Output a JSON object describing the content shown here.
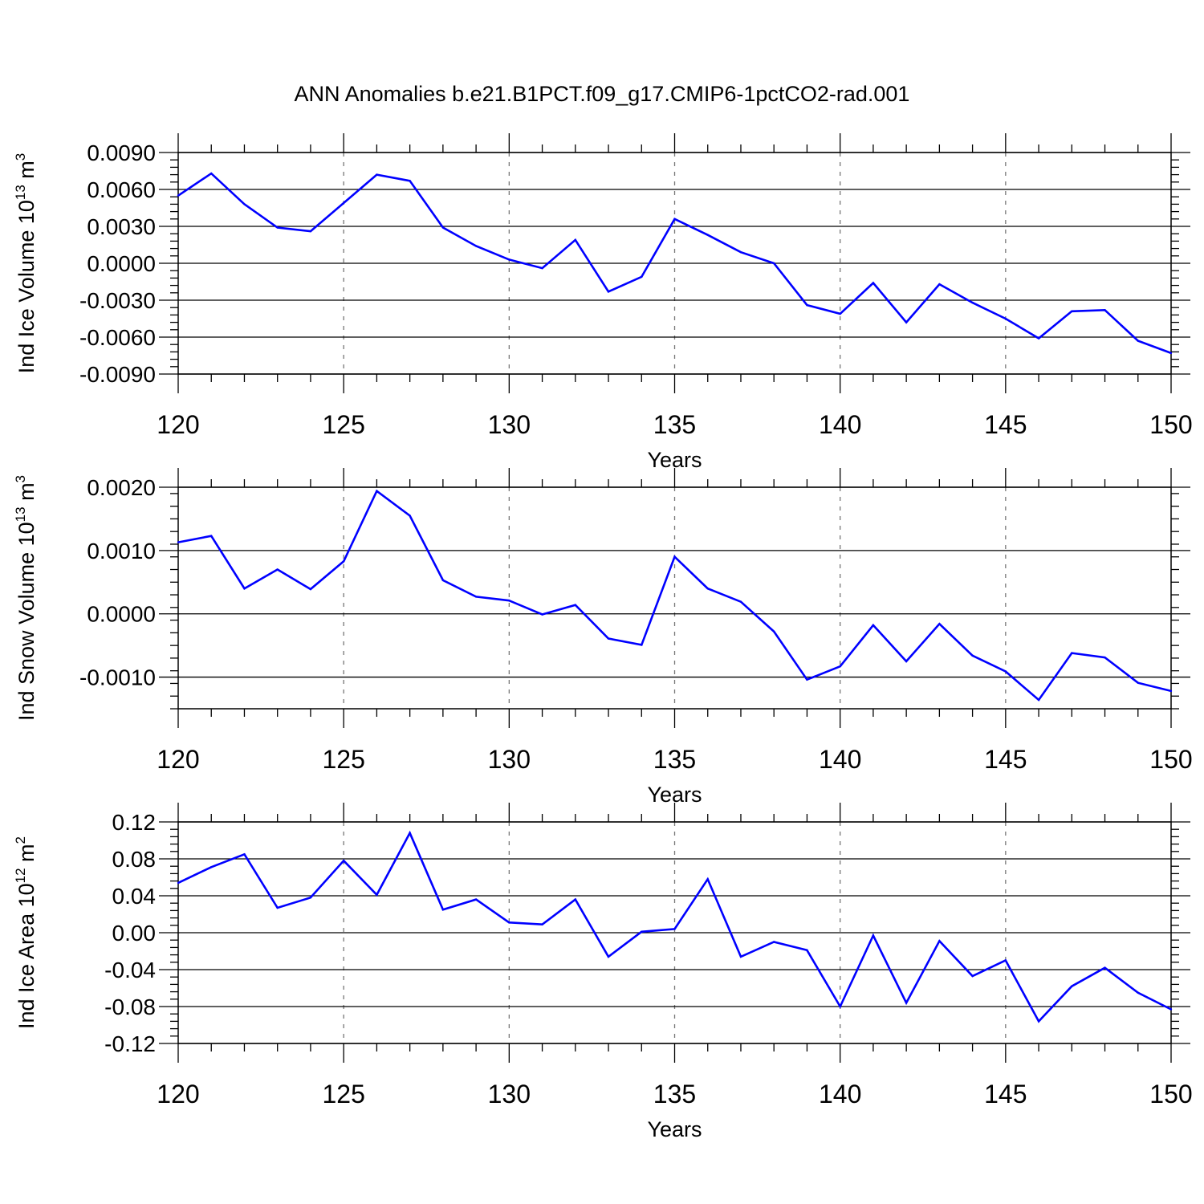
{
  "title": "ANN Anomalies b.e21.B1PCT.f09_g17.CMIP6-1pctCO2-rad.001",
  "colors": {
    "line": "#0000ff",
    "axis": "#000000",
    "grid": "#777777"
  },
  "chart_data": [
    {
      "type": "line",
      "ylabel": {
        "text": "Ind Ice Volume 10",
        "exponent": "13",
        "unit": " m",
        "unit_exponent": "3"
      },
      "xlabel": "Years",
      "xlim": [
        120,
        150
      ],
      "ylim": [
        -0.009,
        0.009
      ],
      "xticks": [
        "120",
        "125",
        "130",
        "135",
        "140",
        "145",
        "150"
      ],
      "yticks": [
        {
          "value": 0.009,
          "label": "0.0090"
        },
        {
          "value": 0.006,
          "label": "0.0060"
        },
        {
          "value": 0.003,
          "label": "0.0030"
        },
        {
          "value": 0.0,
          "label": "0.0000"
        },
        {
          "value": -0.003,
          "label": "-0.0030"
        },
        {
          "value": -0.006,
          "label": "-0.0060"
        },
        {
          "value": -0.009,
          "label": "-0.0090"
        }
      ],
      "grid": "vertical dashed",
      "x": [
        120,
        121,
        122,
        123,
        124,
        125,
        126,
        127,
        128,
        129,
        130,
        131,
        132,
        133,
        134,
        135,
        136,
        137,
        138,
        139,
        140,
        141,
        142,
        143,
        144,
        145,
        146,
        147,
        148,
        149,
        150
      ],
      "y": [
        0.0055,
        0.0073,
        0.0048,
        0.0029,
        0.0026,
        0.0049,
        0.0072,
        0.0067,
        0.0029,
        0.0014,
        0.0003,
        -0.0004,
        0.0019,
        -0.0023,
        -0.0011,
        0.0036,
        0.0023,
        0.0009,
        0.0,
        -0.0034,
        -0.0041,
        -0.0016,
        -0.0048,
        -0.0017,
        -0.0032,
        -0.0045,
        -0.0061,
        -0.0039,
        -0.0038,
        -0.0063,
        -0.0073
      ]
    },
    {
      "type": "line",
      "ylabel": {
        "text": "Ind Snow Volume 10",
        "exponent": "13",
        "unit": " m",
        "unit_exponent": "3"
      },
      "xlabel": "Years",
      "xlim": [
        120,
        150
      ],
      "ylim": [
        -0.0015,
        0.002
      ],
      "xticks": [
        "120",
        "125",
        "130",
        "135",
        "140",
        "145",
        "150"
      ],
      "yticks": [
        {
          "value": 0.002,
          "label": "0.0020"
        },
        {
          "value": 0.001,
          "label": "0.0010"
        },
        {
          "value": 0.0,
          "label": "0.0000"
        },
        {
          "value": -0.001,
          "label": "-0.0010"
        }
      ],
      "grid": "vertical dashed",
      "x": [
        120,
        121,
        122,
        123,
        124,
        125,
        126,
        127,
        128,
        129,
        130,
        131,
        132,
        133,
        134,
        135,
        136,
        137,
        138,
        139,
        140,
        141,
        142,
        143,
        144,
        145,
        146,
        147,
        148,
        149,
        150
      ],
      "y": [
        0.00113,
        0.00123,
        0.0004,
        0.0007,
        0.00039,
        0.00083,
        0.00194,
        0.00155,
        0.00053,
        0.00027,
        0.00021,
        -1e-05,
        0.00014,
        -0.00039,
        -0.00049,
        0.0009,
        0.0004,
        0.00019,
        -0.00028,
        -0.00104,
        -0.00083,
        -0.00018,
        -0.00075,
        -0.00016,
        -0.00066,
        -0.00091,
        -0.00136,
        -0.00062,
        -0.00069,
        -0.00109,
        -0.00122
      ]
    },
    {
      "type": "line",
      "ylabel": {
        "text": "Ind Ice Area 10",
        "exponent": "12",
        "unit": " m",
        "unit_exponent": "2"
      },
      "xlabel": "Years",
      "xlim": [
        120,
        150
      ],
      "ylim": [
        -0.12,
        0.12
      ],
      "xticks": [
        "120",
        "125",
        "130",
        "135",
        "140",
        "145",
        "150"
      ],
      "yticks": [
        {
          "value": 0.12,
          "label": "0.12"
        },
        {
          "value": 0.08,
          "label": "0.08"
        },
        {
          "value": 0.04,
          "label": "0.04"
        },
        {
          "value": 0.0,
          "label": "0.00"
        },
        {
          "value": -0.04,
          "label": "-0.04"
        },
        {
          "value": -0.08,
          "label": "-0.08"
        },
        {
          "value": -0.12,
          "label": "-0.12"
        }
      ],
      "grid": "vertical dashed",
      "x": [
        120,
        121,
        122,
        123,
        124,
        125,
        126,
        127,
        128,
        129,
        130,
        131,
        132,
        133,
        134,
        135,
        136,
        137,
        138,
        139,
        140,
        141,
        142,
        143,
        144,
        145,
        146,
        147,
        148,
        149,
        150
      ],
      "y": [
        0.054,
        0.071,
        0.085,
        0.027,
        0.038,
        0.078,
        0.041,
        0.108,
        0.025,
        0.036,
        0.011,
        0.009,
        0.036,
        -0.026,
        0.001,
        0.004,
        0.058,
        -0.026,
        -0.01,
        -0.019,
        -0.08,
        -0.003,
        -0.076,
        -0.009,
        -0.047,
        -0.03,
        -0.096,
        -0.058,
        -0.038,
        -0.065,
        -0.083
      ]
    }
  ]
}
